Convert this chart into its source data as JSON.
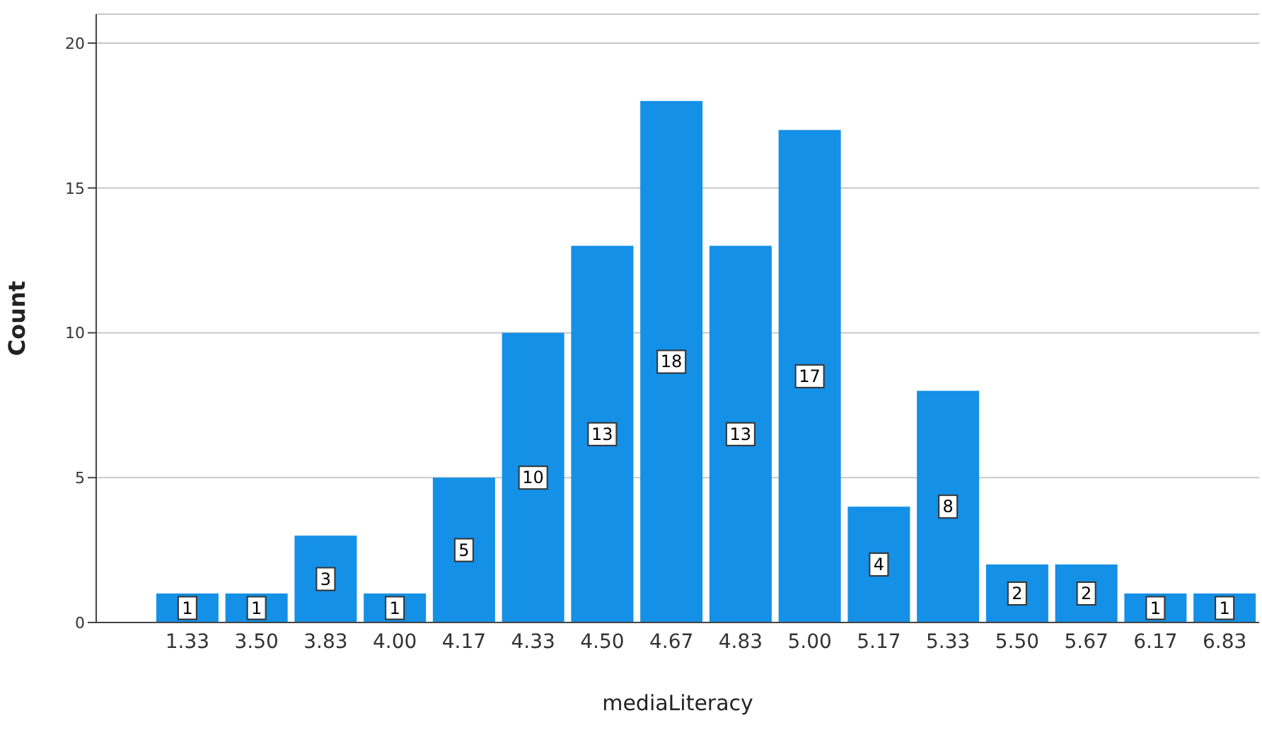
{
  "chart_data": {
    "type": "bar",
    "xlabel": "mediaLiteracy",
    "ylabel": "Count",
    "categories": [
      "1.33",
      "3.50",
      "3.83",
      "4.00",
      "4.17",
      "4.33",
      "4.50",
      "4.67",
      "4.83",
      "5.00",
      "5.17",
      "5.33",
      "5.50",
      "5.67",
      "6.17",
      "6.83"
    ],
    "values": [
      1,
      1,
      3,
      1,
      5,
      10,
      13,
      18,
      13,
      17,
      4,
      8,
      2,
      2,
      1,
      1
    ],
    "color": "#1490e6",
    "ylim": [
      0,
      21
    ],
    "yticks": [
      0,
      5,
      10,
      15,
      20
    ],
    "grid": "y",
    "data_labels": true,
    "legend": false
  }
}
